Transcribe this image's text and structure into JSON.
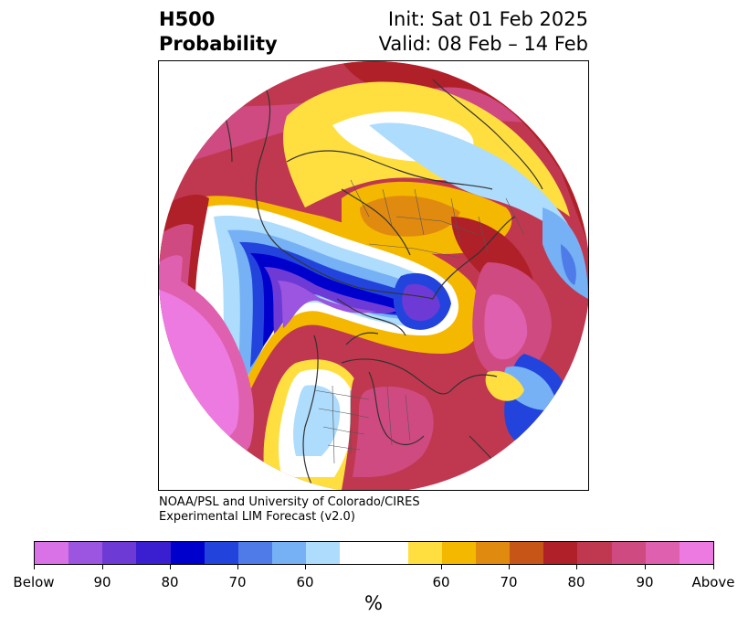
{
  "header": {
    "title_line1": "H500",
    "title_line2": "Probability",
    "init_text": "Init: Sat 01 Feb 2025",
    "valid_text": "Valid: 08 Feb – 14 Feb"
  },
  "credit": {
    "line1": "NOAA/PSL and University of Colorado/CIRES",
    "line2": "Experimental LIM Forecast (v2.0)"
  },
  "colorbar": {
    "units": "%",
    "colors": [
      "#d872e6",
      "#9b55e0",
      "#6e3ad6",
      "#3a1fd0",
      "#0000cc",
      "#2244dd",
      "#4f7be8",
      "#75b1f4",
      "#aedcfc",
      "#ffffff",
      "#ffdf40",
      "#f5b800",
      "#e08a10",
      "#c85518",
      "#b02028",
      "#c03850",
      "#cf4a80",
      "#de60ae",
      "#ec7ae0"
    ],
    "tick_labels": [
      "Below",
      "90",
      "80",
      "70",
      "60",
      "60",
      "70",
      "80",
      "90",
      "Above"
    ]
  },
  "map": {
    "projection": "polar stereographic (Northern Hemisphere)",
    "palette": {
      "below_strong": "#9b55e0",
      "below_core": "#0000cc",
      "below_mid": "#4f7be8",
      "below_weak": "#aedcfc",
      "above_weak": "#ffdf40",
      "above_mid": "#e08a10",
      "above_strong": "#b02028",
      "above_core": "#cf4a80",
      "above_peak": "#ec7ae0"
    }
  }
}
